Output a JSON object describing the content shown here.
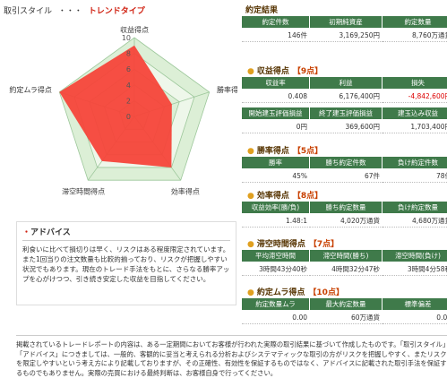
{
  "header": {
    "label": "取引スタイル",
    "separator": "・・・",
    "style": "トレンドタイプ"
  },
  "radar": {
    "type": "radar",
    "axes": [
      "収益得点",
      "勝率得点",
      "効率得点",
      "滞空時間得点",
      "約定ムラ得点"
    ],
    "values": [
      9,
      5,
      8,
      7,
      10
    ],
    "rlim": [
      0,
      10
    ],
    "rticks": [
      0,
      2,
      4,
      6,
      8,
      10
    ],
    "color": "#f5443a"
  },
  "advice": {
    "title": "アドバイス",
    "text": "利食いに比べて損切りは早く、リスクはある程度限定されています。また1回当りの注文数量も比較的揃っており、リスクが把握しやすい状況でもあります。現在のトレード手法をもとに、さらなる勝率アップを心がけつつ、引き続き安定した収益を目指してください。"
  },
  "sections": [
    {
      "title": "約定結果",
      "tables": [
        {
          "headers": [
            "約定件数",
            "初期純資産",
            "約定数量"
          ],
          "values": [
            "146件",
            "3,169,250円",
            "8,760万通貨"
          ]
        }
      ]
    },
    {
      "title": "収益得点",
      "score": "【9点】",
      "tables": [
        {
          "headers": [
            "収益率",
            "利益",
            "損失"
          ],
          "values": [
            "0.408",
            "6,176,400円",
            "-4,842,600円"
          ]
        },
        {
          "headers": [
            "開始建玉評価損益",
            "終了建玉評価損益",
            "建玉込み収益"
          ],
          "values": [
            "0円",
            "369,600円",
            "1,703,400円"
          ]
        }
      ]
    },
    {
      "title": "勝率得点",
      "score": "【5点】",
      "tables": [
        {
          "headers": [
            "勝率",
            "勝ち約定件数",
            "負け約定件数"
          ],
          "values": [
            "45%",
            "67件",
            "78件"
          ]
        }
      ]
    },
    {
      "title": "効率得点",
      "score": "【8点】",
      "tables": [
        {
          "headers": [
            "収益効率(勝/負)",
            "勝ち約定数量",
            "負け約定数量"
          ],
          "values": [
            "1.48:1",
            "4,020万通貨",
            "4,680万通貨"
          ]
        }
      ]
    },
    {
      "title": "滞空時間得点",
      "score": "【7点】",
      "tables": [
        {
          "headers": [
            "平均滞空時間",
            "滞空時間(勝ち)",
            "滞空時間(負け)"
          ],
          "values": [
            "3時間43分40秒",
            "4時間32分47秒",
            "3時間4分58秒"
          ]
        }
      ]
    },
    {
      "title": "約定ムラ得点",
      "score": "【10点】",
      "tables": [
        {
          "headers": [
            "約定数量ムラ",
            "最大約定数量",
            "標準偏差"
          ],
          "values": [
            "0.00",
            "60万通貨",
            "0.00"
          ]
        }
      ]
    }
  ],
  "disclaimer": "掲載されているトレードレポートの内容は、ある一定期間においてお客様が行われた実際の取引結果に基づいて作成したものです。「取引スタイル」「アドバイス」につきましては、一般的、客観的に妥当と考えられる分析およびシステマティックな取引の方がリスクを把握しやすく、またリスクを限定しやすいという考え方により記載しておりますが、その正確性、有効性を保証するものではなく、アドバイスに記載された取引手法を保証するものでもありません。実際の売買における最終判断は、お客様自身で行ってください。"
}
